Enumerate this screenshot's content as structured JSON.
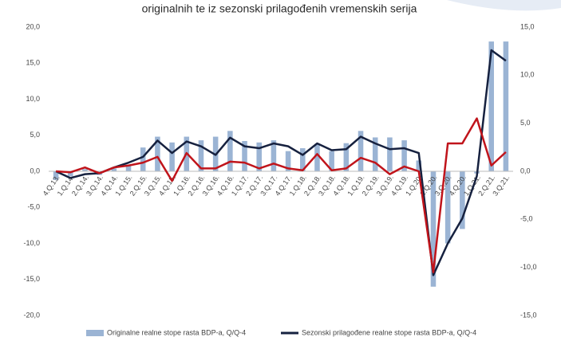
{
  "chart_data": {
    "type": "bar",
    "title": "originalnih te iz sezonski prilagođenih vremenskih serija",
    "categories": [
      "4.Q.13.",
      "1.Q.14.",
      "2.Q.14.",
      "3.Q.14.",
      "4.Q.14.",
      "1.Q.15.",
      "2.Q.15.",
      "3.Q.15.",
      "4.Q.15.",
      "1.Q.16.",
      "2.Q.16.",
      "3.Q.16.",
      "4.Q.16.",
      "1.Q.17.",
      "2.Q.17.",
      "3.Q.17.",
      "4.Q.17.",
      "1.Q.18.",
      "2.Q.18.",
      "3.Q.18.",
      "4.Q.18.",
      "1.Q.19.",
      "2.Q.19.",
      "3.Q.19.",
      "4.Q.19.",
      "1.Q.20.",
      "2.Q.20.",
      "3.Q.20.",
      "4.Q.20.",
      "1.Q.21.",
      "2.Q.21.",
      "3.Q.21."
    ],
    "series": [
      {
        "name": "Originalne realne stope rasta BDP-a, Q/Q-4",
        "type": "bar",
        "color": "#9bb4d4",
        "values": [
          -1.2,
          -0.7,
          0.3,
          -0.5,
          0.4,
          0.9,
          3.3,
          4.8,
          4.0,
          4.8,
          4.3,
          4.8,
          5.6,
          4.2,
          4.0,
          4.3,
          2.8,
          3.2,
          3.8,
          2.8,
          3.9,
          5.6,
          4.7,
          4.7,
          4.3,
          1.5,
          -16.0,
          -10.0,
          -8.0,
          -0.3,
          18.0,
          18.0
        ]
      },
      {
        "name": "Sezonski prilagođene realne stope rasta BDP-a, Q/Q-4",
        "type": "line",
        "axis": "y2",
        "color": "#16213f",
        "values": [
          0.0,
          -0.7,
          -0.3,
          -0.2,
          0.4,
          0.9,
          1.5,
          3.2,
          1.9,
          3.1,
          2.6,
          1.7,
          3.5,
          2.6,
          2.4,
          2.9,
          2.6,
          1.7,
          2.9,
          2.2,
          2.3,
          3.6,
          2.9,
          2.3,
          2.4,
          1.9,
          -10.8,
          -7.5,
          -4.9,
          -0.5,
          12.6,
          11.5
        ]
      },
      {
        "type": "line",
        "axis": "y2",
        "color": "#c0141b",
        "values": [
          0.0,
          -0.1,
          0.4,
          -0.2,
          0.4,
          0.6,
          0.9,
          1.5,
          -1.0,
          1.9,
          0.3,
          0.3,
          1.0,
          0.9,
          0.3,
          0.8,
          0.3,
          0.1,
          1.8,
          0.1,
          0.3,
          1.4,
          0.9,
          -0.3,
          0.5,
          0.0,
          -10.5,
          2.9,
          2.9,
          5.5,
          0.6,
          2.0
        ]
      }
    ],
    "ylim": [
      -20,
      20
    ],
    "yticks": [
      {
        "value": 20,
        "label": "20,0"
      },
      {
        "value": 15,
        "label": "15,0"
      },
      {
        "value": 10,
        "label": "10,0"
      },
      {
        "value": 5,
        "label": "5,0"
      },
      {
        "value": 0,
        "label": "0,0"
      },
      {
        "value": -5,
        "label": "-5,0"
      },
      {
        "value": -10,
        "label": "-10,0"
      },
      {
        "value": -15,
        "label": "-15,0"
      },
      {
        "value": -20,
        "label": "-20,0"
      }
    ],
    "y2lim": [
      -15,
      15
    ],
    "y2ticks": [
      {
        "value": 15,
        "label": "15,0"
      },
      {
        "value": 10,
        "label": "10,0"
      },
      {
        "value": 5,
        "label": "5,0"
      },
      {
        "value": 0,
        "label": "0,0"
      },
      {
        "value": -5,
        "label": "-5,0"
      },
      {
        "value": -10,
        "label": "-10,0"
      },
      {
        "value": -15,
        "label": "-15,0"
      }
    ]
  }
}
